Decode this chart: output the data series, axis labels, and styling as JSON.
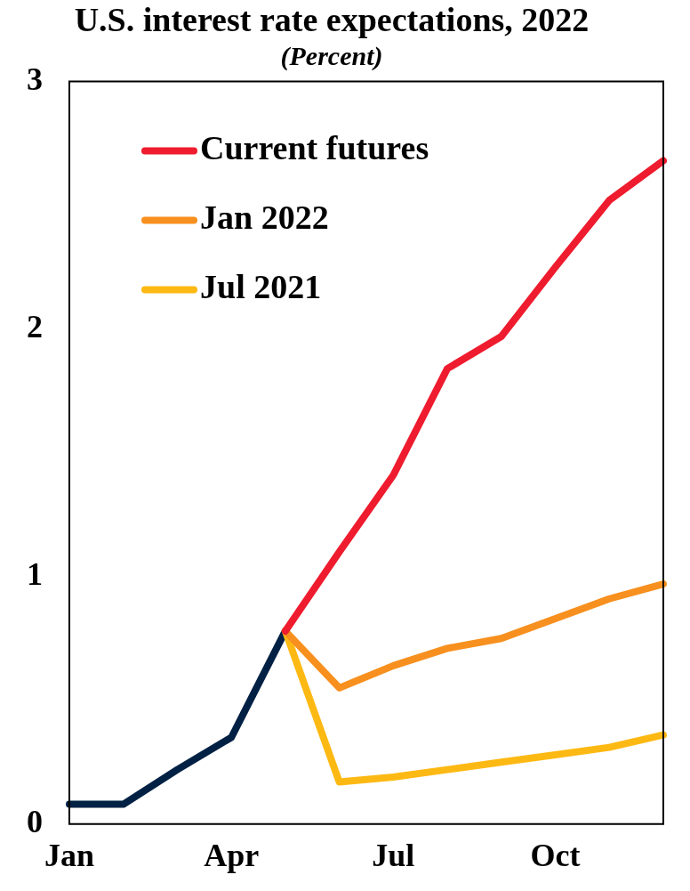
{
  "chart_data": {
    "type": "line",
    "title": "U.S. interest rate expectations, 2022",
    "subtitle": "(Percent)",
    "categories": [
      "Jan",
      null,
      null,
      "Apr",
      null,
      null,
      "Jul",
      null,
      null,
      "Oct",
      null,
      null
    ],
    "series": [
      {
        "name": "Current futures",
        "color": "#ee1c2e",
        "values": [
          null,
          null,
          null,
          null,
          0.78,
          1.1,
          1.41,
          1.84,
          1.97,
          2.25,
          2.52,
          2.68
        ]
      },
      {
        "name": "Jan 2022",
        "color": "#f7901e",
        "values": [
          null,
          null,
          null,
          null,
          0.78,
          0.55,
          0.64,
          0.71,
          0.75,
          0.83,
          0.91,
          0.97
        ]
      },
      {
        "name": "Jul 2021",
        "color": "#fdb913",
        "values": [
          null,
          null,
          null,
          null,
          0.78,
          0.17,
          0.19,
          0.22,
          0.25,
          0.28,
          0.31,
          0.36
        ]
      },
      {
        "color": "#002144",
        "values": [
          0.08,
          0.08,
          0.22,
          0.35,
          0.78,
          null,
          null,
          null,
          null,
          null,
          null,
          null
        ]
      }
    ],
    "ylim": [
      0,
      3
    ],
    "yticks": [
      0,
      1,
      2,
      3
    ],
    "grid": false,
    "legend": "top left",
    "marker": "none",
    "line_style": "solid"
  }
}
